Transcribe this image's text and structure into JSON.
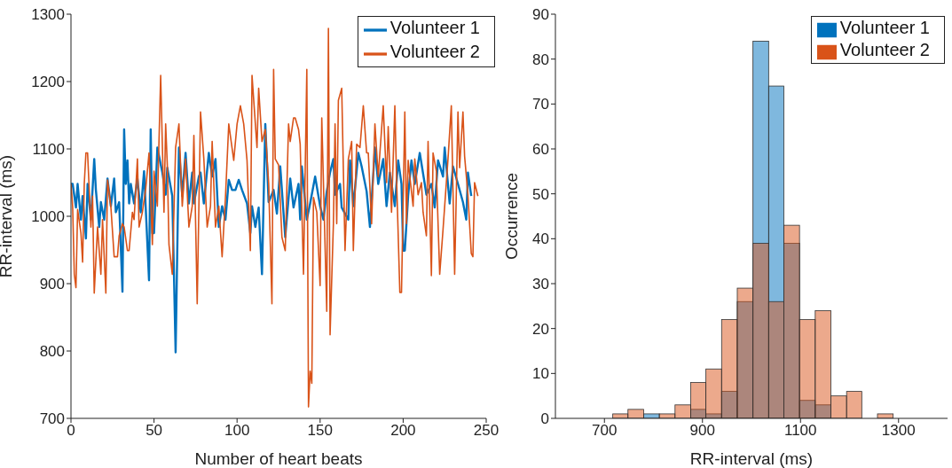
{
  "chart_data": [
    {
      "type": "line",
      "xlabel": "Number of heart beats",
      "ylabel": "RR-interval (ms)",
      "xlim": [
        0,
        250
      ],
      "xticks": [
        0,
        50,
        100,
        150,
        200,
        250
      ],
      "ylim": [
        700,
        1300
      ],
      "yticks": [
        700,
        800,
        900,
        1000,
        1100,
        1200,
        1300
      ],
      "legend": "top right",
      "series": [
        {
          "name": "Volunteer 1",
          "color": "#0072bd",
          "x": [
            0,
            1,
            3,
            4,
            6,
            7,
            9,
            10,
            12,
            14,
            15,
            17,
            18,
            20,
            22,
            24,
            26,
            27,
            29,
            31,
            32,
            33,
            34,
            35,
            36,
            38,
            40,
            42,
            44,
            47,
            48,
            49,
            50,
            52,
            55,
            57,
            58,
            61,
            63,
            65,
            67,
            69,
            71,
            73,
            74,
            77,
            78,
            80,
            83,
            85,
            87,
            89,
            91,
            93,
            95,
            97,
            99,
            101,
            103,
            106,
            108,
            109,
            111,
            113,
            115,
            117,
            119,
            122,
            124,
            126,
            129,
            132,
            134,
            137,
            138,
            139,
            142,
            144,
            147,
            150,
            152,
            154,
            156,
            158,
            159,
            162,
            163,
            167,
            168,
            170,
            173,
            175,
            178,
            180,
            183,
            185,
            188,
            190,
            192,
            195,
            197,
            199,
            200,
            201,
            203,
            205,
            207,
            210,
            213,
            214,
            217,
            219,
            221,
            224,
            225,
            228,
            230,
            233,
            236,
            238,
            239,
            241
          ],
          "values": [
            1048,
            1048,
            1013,
            1048,
            995,
            1030,
            967,
            1048,
            995,
            1085,
            1039,
            984,
            1021,
            995,
            1056,
            1015,
            1056,
            1006,
            1021,
            888,
            1129,
            1048,
            1083,
            1019,
            1048,
            1019,
            1056,
            1006,
            1067,
            905,
            1129,
            975,
            975,
            1102,
            1065,
            1032,
            1072,
            1030,
            798,
            1102,
            1030,
            1094,
            1019,
            1065,
            1019,
            1059,
            1065,
            1019,
            1094,
            1059,
            1085,
            984,
            1015,
            995,
            1054,
            1039,
            1039,
            1054,
            1039,
            1019,
            975,
            1015,
            984,
            1013,
            914,
            1137,
            1021,
            1039,
            1004,
            1074,
            969,
            1056,
            1013,
            1048,
            995,
            1074,
            995,
            1019,
            1059,
            1015,
            995,
            1037,
            1065,
            1085,
            1032,
            1048,
            1013,
            995,
            1083,
            1015,
            1094,
            1074,
            1037,
            984,
            1102,
            1048,
            1085,
            1015,
            1065,
            1015,
            1083,
            1048,
            949,
            949,
            1030,
            1083,
            1048,
            1094,
            1048,
            1032,
            1048,
            1013,
            1083,
            1059,
            1102,
            1019,
            1074,
            1048,
            1021,
            995,
            1065,
            1030
          ]
        },
        {
          "name": "Volunteer 2",
          "color": "#d95319",
          "x": [
            0,
            1,
            2,
            3,
            4,
            6,
            7,
            8,
            9,
            10,
            12,
            13,
            14,
            16,
            18,
            19,
            21,
            22,
            24,
            26,
            28,
            29,
            31,
            32,
            34,
            35,
            37,
            38,
            40,
            41,
            43,
            45,
            47,
            49,
            50,
            52,
            54,
            56,
            57,
            58,
            59,
            61,
            63,
            65,
            67,
            69,
            71,
            73,
            74,
            76,
            78,
            80,
            82,
            84,
            85,
            87,
            89,
            91,
            93,
            95,
            98,
            100,
            102,
            104,
            106,
            108,
            109,
            112,
            113,
            115,
            117,
            119,
            121,
            122,
            123,
            125,
            127,
            129,
            131,
            132,
            134,
            135,
            137,
            138,
            140,
            142,
            143,
            144,
            145,
            146,
            148,
            150,
            151,
            154,
            155,
            156,
            158,
            159,
            160,
            161,
            163,
            165,
            167,
            169,
            170,
            172,
            174,
            176,
            178,
            179,
            181,
            183,
            185,
            188,
            190,
            191,
            193,
            195,
            196,
            198,
            199,
            201,
            202,
            203,
            204,
            206,
            207,
            209,
            211,
            212,
            214,
            215,
            217,
            218,
            220,
            222,
            224,
            225,
            227,
            229,
            231,
            233,
            234,
            236,
            237,
            239,
            241,
            242,
            243,
            245
          ],
          "values": [
            1048,
            1015,
            914,
            894,
            1010,
            975,
            932,
            1048,
            1094,
            1094,
            984,
            1030,
            886,
            984,
            914,
            995,
            886,
            1054,
            1015,
            940,
            940,
            971,
            989,
            984,
            949,
            949,
            1006,
            995,
            1085,
            984,
            1006,
            1041,
            1094,
            958,
            1067,
            1015,
            1209,
            1006,
            1137,
            1076,
            958,
            914,
            1102,
            1137,
            1015,
            1085,
            984,
            1015,
            1120,
            870,
            1155,
            1085,
            984,
            1015,
            1111,
            984,
            1015,
            940,
            1028,
            1137,
            1083,
            1137,
            1164,
            1137,
            1083,
            949,
            1209,
            1102,
            1190,
            1111,
            1129,
            1050,
            870,
            1218,
            1085,
            1076,
            969,
            949,
            1137,
            1111,
            1146,
            1146,
            1129,
            1107,
            914,
            1218,
            717,
            770,
            752,
            1028,
            1006,
            897,
            1146,
            859,
            1279,
            824,
            989,
            1137,
            989,
            1172,
            1190,
            949,
            1085,
            1111,
            949,
            1107,
            1102,
            1164,
            1094,
            1094,
            989,
            1137,
            1059,
            1164,
            1050,
            1133,
            1006,
            1164,
            1059,
            887,
            887,
            1155,
            989,
            1083,
            1059,
            1015,
            1085,
            1032,
            1050,
            1006,
            971,
            1111,
            912,
            1094,
            1067,
            914,
            980,
            1015,
            1085,
            1164,
            914,
            1155,
            1072,
            1155,
            1089,
            1032,
            945,
            940,
            1050,
            1030
          ]
        }
      ]
    },
    {
      "type": "histogram",
      "xlabel": "RR-interval (ms)",
      "ylabel": "Occurrence",
      "xlim": [
        600,
        1400
      ],
      "xticks": [
        700,
        900,
        1100,
        1300
      ],
      "ylim": [
        0,
        90
      ],
      "yticks": [
        0,
        10,
        20,
        30,
        40,
        50,
        60,
        70,
        80,
        90
      ],
      "legend": "top right",
      "bins": [
        717,
        748,
        780,
        812,
        844,
        876,
        907,
        939,
        971,
        1003,
        1035,
        1066,
        1098,
        1130,
        1162,
        1194,
        1225,
        1257,
        1289
      ],
      "series": [
        {
          "name": "Volunteer 1",
          "color": "#0072bd",
          "values": [
            0,
            0,
            1,
            0,
            0,
            2,
            1,
            6,
            26,
            84,
            74,
            39,
            4,
            3,
            0,
            0,
            0,
            0
          ]
        },
        {
          "name": "Volunteer 2",
          "color": "#d95319",
          "values": [
            1,
            2,
            0,
            1,
            3,
            8,
            11,
            22,
            29,
            39,
            26,
            43,
            22,
            24,
            5,
            6,
            0,
            1
          ]
        }
      ]
    }
  ]
}
